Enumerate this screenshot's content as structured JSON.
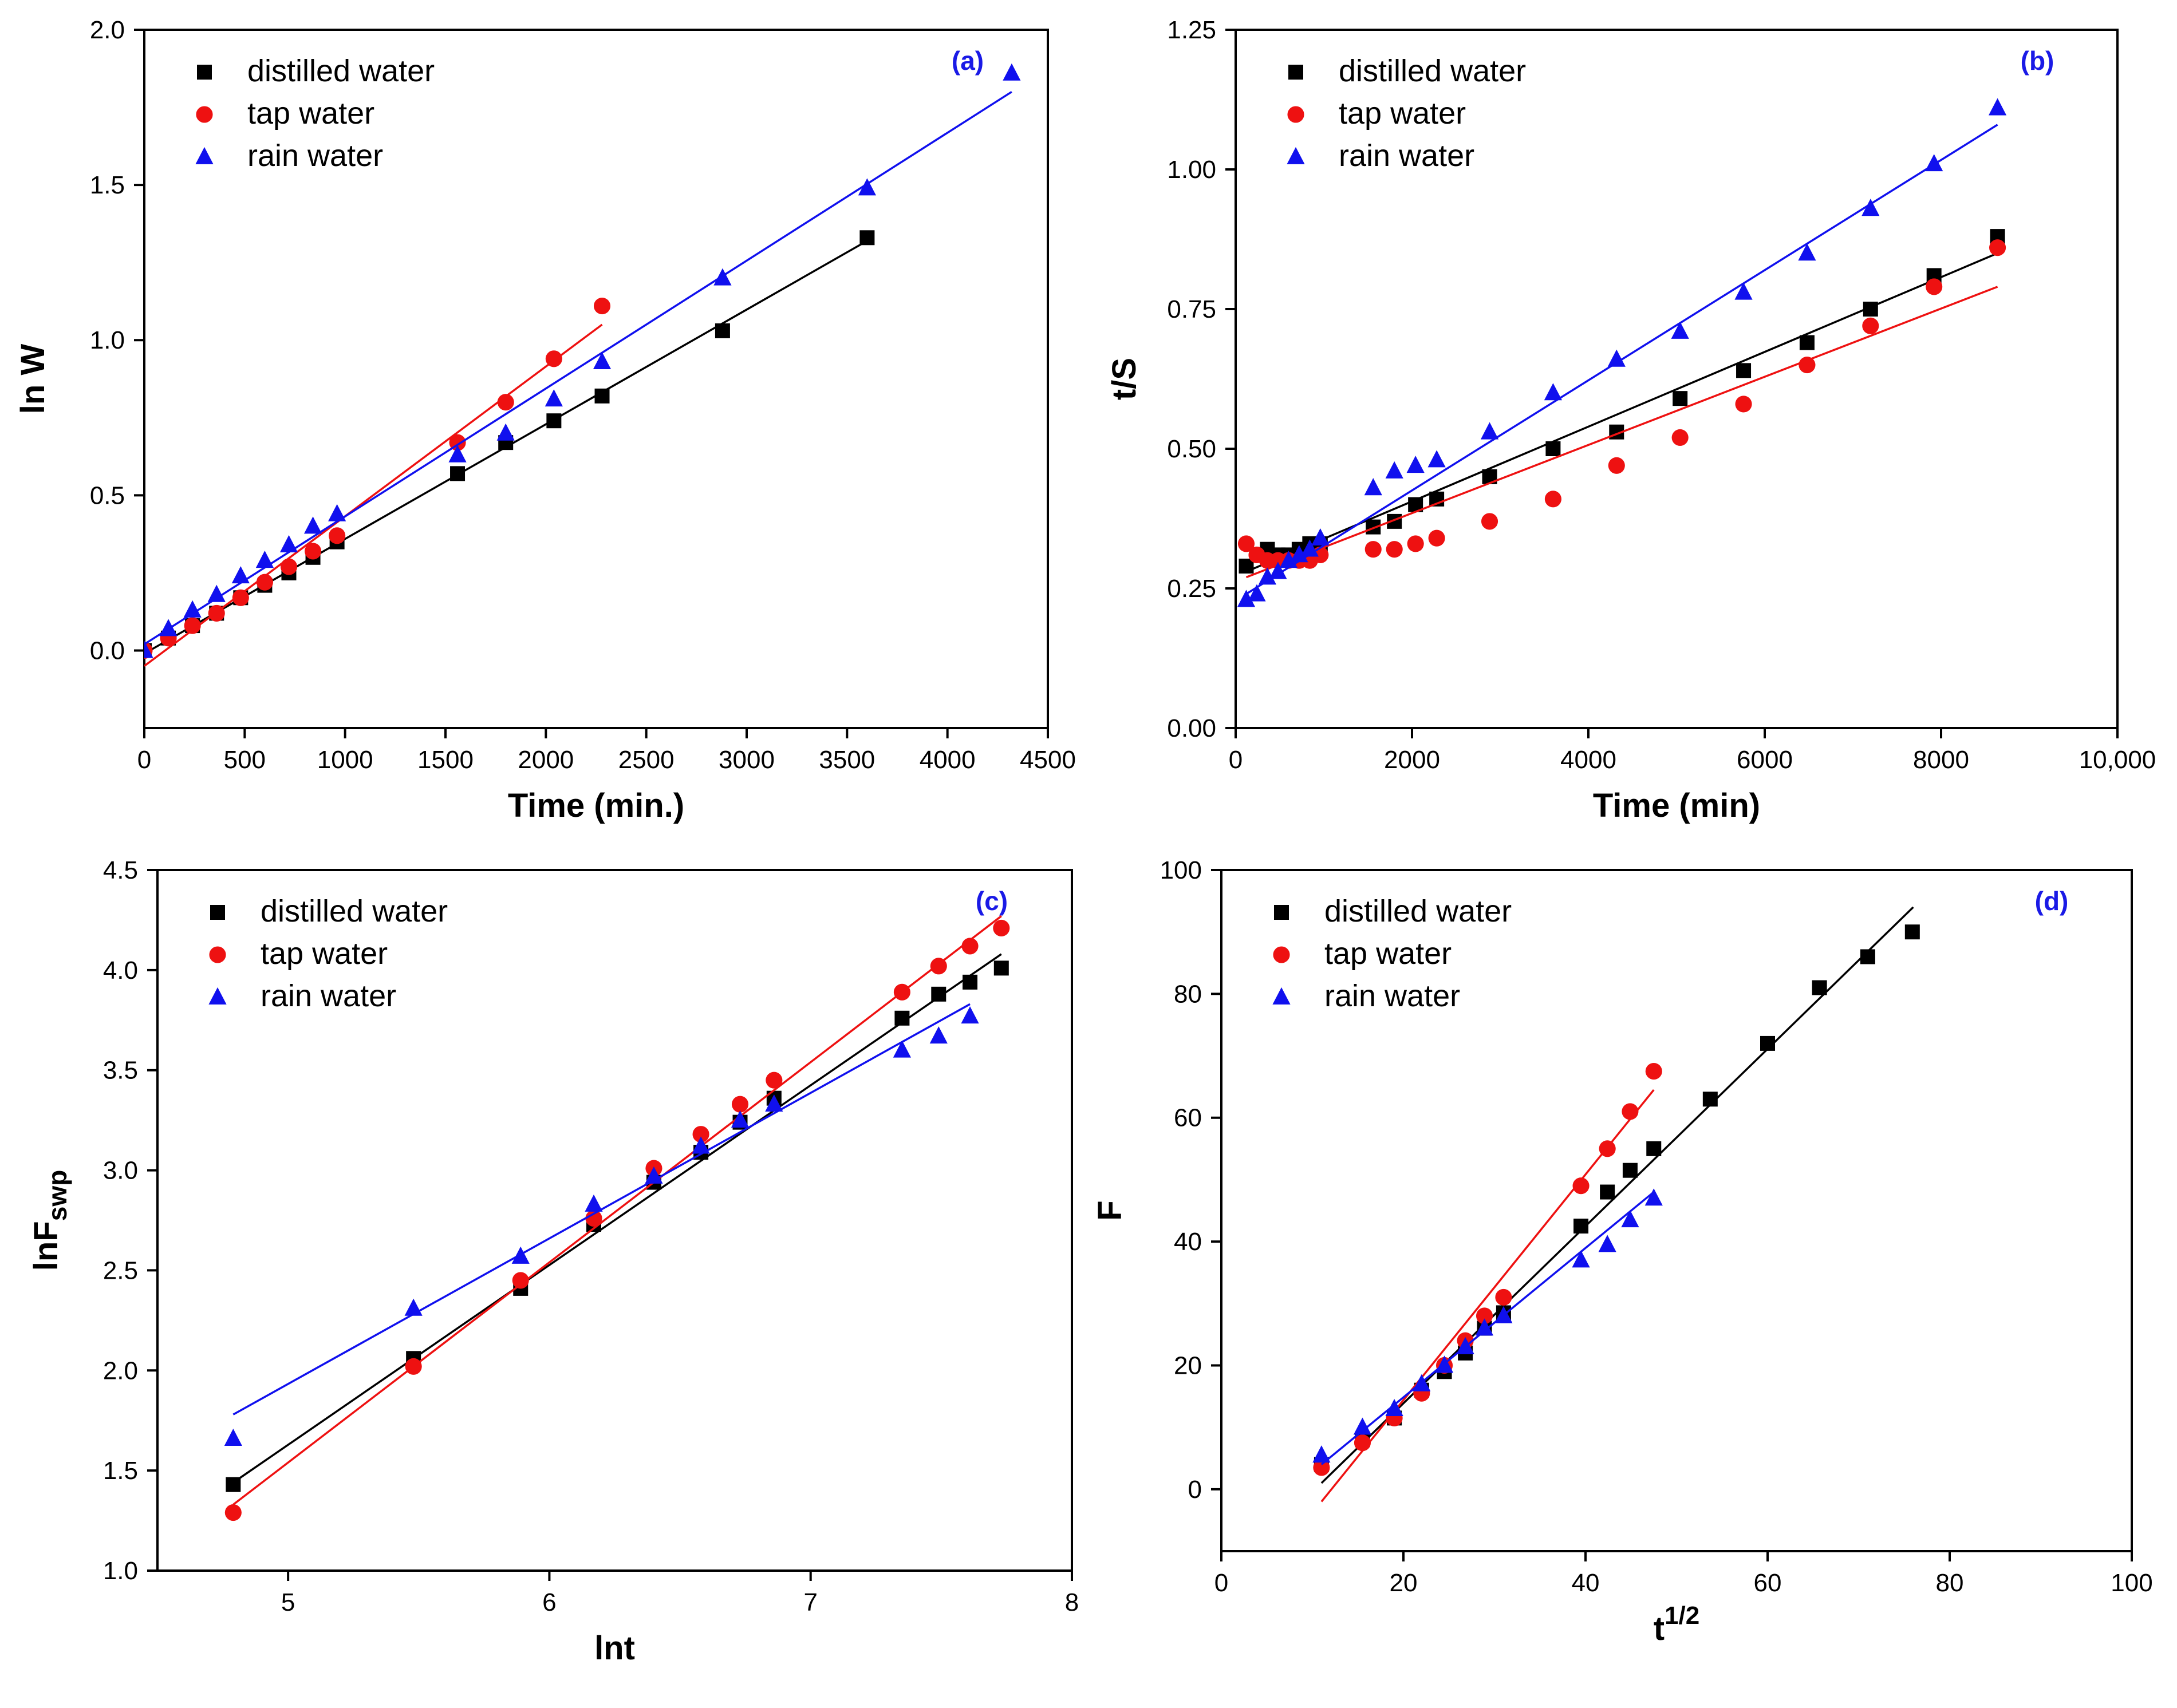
{
  "colors": {
    "distilled": "#000000",
    "tap": "#ee1111",
    "rain": "#1010ee",
    "tag": "#1a1ae6"
  },
  "chart_data": [
    {
      "panel": "(a)",
      "type": "scatter",
      "xlabel": "Time (min.)",
      "ylabel": "ln W",
      "xlim": [
        0,
        4500
      ],
      "ylim": [
        -0.25,
        2.0
      ],
      "xticks": [
        0,
        500,
        1000,
        1500,
        2000,
        2500,
        3000,
        3500,
        4000,
        4500
      ],
      "xtick_labels": [
        "0",
        "500",
        "1000",
        "1500",
        "2000",
        "2500",
        "3000",
        "3500",
        "4000",
        "4500"
      ],
      "yticks": [
        0.0,
        0.5,
        1.0,
        1.5,
        2.0
      ],
      "ytick_labels": [
        "0.0",
        "0.5",
        "1.0",
        "1.5",
        "2.0"
      ],
      "legend_position": "top-left",
      "series": [
        {
          "name": "distilled water",
          "key": "distilled",
          "marker": "square",
          "x": [
            0,
            120,
            240,
            360,
            480,
            600,
            720,
            840,
            960,
            1560,
            1800,
            2040,
            2280,
            2880,
            3600
          ],
          "y": [
            0.0,
            0.04,
            0.08,
            0.12,
            0.17,
            0.21,
            0.25,
            0.3,
            0.35,
            0.57,
            0.67,
            0.74,
            0.82,
            1.03,
            1.33
          ],
          "fit": [
            [
              0,
              -0.01
            ],
            [
              3600,
              1.32
            ]
          ]
        },
        {
          "name": "tap water",
          "key": "tap",
          "marker": "circle",
          "x": [
            0,
            120,
            240,
            360,
            480,
            600,
            720,
            840,
            960,
            1560,
            1800,
            2040,
            2280
          ],
          "y": [
            0.0,
            0.04,
            0.08,
            0.12,
            0.17,
            0.22,
            0.27,
            0.32,
            0.37,
            0.67,
            0.8,
            0.94,
            1.11
          ],
          "fit": [
            [
              0,
              -0.05
            ],
            [
              2280,
              1.05
            ]
          ]
        },
        {
          "name": "rain water",
          "key": "rain",
          "marker": "triangle",
          "x": [
            0,
            120,
            240,
            360,
            480,
            600,
            720,
            840,
            960,
            1560,
            1800,
            2040,
            2280,
            2880,
            3600,
            4320
          ],
          "y": [
            0.0,
            0.07,
            0.13,
            0.18,
            0.24,
            0.29,
            0.34,
            0.4,
            0.44,
            0.63,
            0.7,
            0.81,
            0.93,
            1.2,
            1.49,
            1.86
          ],
          "fit": [
            [
              0,
              0.02
            ],
            [
              4320,
              1.8
            ]
          ]
        }
      ]
    },
    {
      "panel": "(b)",
      "type": "scatter",
      "xlabel": "Time (min)",
      "ylabel": "t/S",
      "xlim": [
        0,
        10000
      ],
      "ylim": [
        0.0,
        1.25
      ],
      "xticks": [
        0,
        2000,
        4000,
        6000,
        8000,
        10000
      ],
      "xtick_labels": [
        "0",
        "2000",
        "4000",
        "6000",
        "8000",
        "10,000"
      ],
      "yticks": [
        0.0,
        0.25,
        0.5,
        0.75,
        1.0,
        1.25
      ],
      "ytick_labels": [
        "0.00",
        "0.25",
        "0.50",
        "0.75",
        "1.00",
        "1.25"
      ],
      "legend_position": "top-left",
      "series": [
        {
          "name": "distilled water",
          "key": "distilled",
          "marker": "square",
          "x": [
            120,
            240,
            360,
            480,
            600,
            720,
            840,
            960,
            1560,
            1800,
            2040,
            2280,
            2880,
            3600,
            4320,
            5040,
            5760,
            6480,
            7200,
            7920,
            8640
          ],
          "y": [
            0.29,
            0.31,
            0.32,
            0.31,
            0.31,
            0.32,
            0.33,
            0.33,
            0.36,
            0.37,
            0.4,
            0.41,
            0.45,
            0.5,
            0.53,
            0.59,
            0.64,
            0.69,
            0.75,
            0.81,
            0.88
          ],
          "fit": [
            [
              120,
              0.28
            ],
            [
              8640,
              0.85
            ]
          ]
        },
        {
          "name": "tap water",
          "key": "tap",
          "marker": "circle",
          "x": [
            120,
            240,
            360,
            480,
            600,
            720,
            840,
            960,
            1560,
            1800,
            2040,
            2280,
            2880,
            3600,
            4320,
            5040,
            5760,
            6480,
            7200,
            7920,
            8640
          ],
          "y": [
            0.33,
            0.31,
            0.3,
            0.3,
            0.3,
            0.3,
            0.3,
            0.31,
            0.32,
            0.32,
            0.33,
            0.34,
            0.37,
            0.41,
            0.47,
            0.52,
            0.58,
            0.65,
            0.72,
            0.79,
            0.86
          ],
          "fit": [
            [
              120,
              0.27
            ],
            [
              8640,
              0.79
            ]
          ]
        },
        {
          "name": "rain water",
          "key": "rain",
          "marker": "triangle",
          "x": [
            120,
            240,
            360,
            480,
            600,
            720,
            840,
            960,
            1560,
            1800,
            2040,
            2280,
            2880,
            3600,
            4320,
            5040,
            5760,
            6480,
            7200,
            7920,
            8640
          ],
          "y": [
            0.23,
            0.24,
            0.27,
            0.28,
            0.3,
            0.31,
            0.32,
            0.34,
            0.43,
            0.46,
            0.47,
            0.48,
            0.53,
            0.6,
            0.66,
            0.71,
            0.78,
            0.85,
            0.93,
            1.01,
            1.11
          ],
          "fit": [
            [
              120,
              0.24
            ],
            [
              8640,
              1.08
            ]
          ]
        }
      ]
    },
    {
      "panel": "(c)",
      "type": "scatter",
      "xlabel": "lnt",
      "ylabel_main": "lnF",
      "ylabel_sub": "swp",
      "xlim": [
        4.5,
        8.0
      ],
      "ylim": [
        1.0,
        4.5
      ],
      "xticks": [
        5,
        6,
        7,
        8
      ],
      "xtick_labels": [
        "5",
        "6",
        "7",
        "8"
      ],
      "yticks": [
        1.0,
        1.5,
        2.0,
        2.5,
        3.0,
        3.5,
        4.0,
        4.5
      ],
      "ytick_labels": [
        "1.0",
        "1.5",
        "2.0",
        "2.5",
        "3.0",
        "3.5",
        "4.0",
        "4.5"
      ],
      "legend_position": "top-left",
      "series": [
        {
          "name": "distilled water",
          "key": "distilled",
          "marker": "square",
          "x": [
            4.79,
            5.48,
            5.89,
            6.17,
            6.4,
            6.58,
            6.73,
            6.86,
            7.35,
            7.49,
            7.61,
            7.73
          ],
          "y": [
            1.43,
            2.06,
            2.41,
            2.73,
            2.94,
            3.09,
            3.24,
            3.36,
            3.76,
            3.88,
            3.94,
            4.01
          ],
          "fit": [
            [
              4.79,
              1.44
            ],
            [
              7.73,
              4.08
            ]
          ]
        },
        {
          "name": "tap water",
          "key": "tap",
          "marker": "circle",
          "x": [
            4.79,
            5.48,
            5.89,
            6.17,
            6.4,
            6.58,
            6.73,
            6.86,
            7.35,
            7.49,
            7.61,
            7.73
          ],
          "y": [
            1.29,
            2.02,
            2.45,
            2.76,
            3.01,
            3.18,
            3.33,
            3.45,
            3.89,
            4.02,
            4.12,
            4.21
          ],
          "fit": [
            [
              4.79,
              1.33
            ],
            [
              7.73,
              4.27
            ]
          ]
        },
        {
          "name": "rain water",
          "key": "rain",
          "marker": "triangle",
          "x": [
            4.79,
            5.48,
            5.89,
            6.17,
            6.4,
            6.58,
            6.73,
            6.86,
            7.35,
            7.49,
            7.61
          ],
          "y": [
            1.66,
            2.31,
            2.57,
            2.83,
            2.97,
            3.12,
            3.25,
            3.33,
            3.6,
            3.67,
            3.77
          ],
          "fit": [
            [
              4.79,
              1.78
            ],
            [
              7.61,
              3.83
            ]
          ]
        }
      ]
    },
    {
      "panel": "(d)",
      "type": "scatter",
      "xlabel_main": "t",
      "xlabel_sup": "1/2",
      "ylabel": "F",
      "xlim": [
        0,
        100
      ],
      "ylim": [
        -10,
        100
      ],
      "xticks": [
        0,
        20,
        40,
        60,
        80,
        100
      ],
      "xtick_labels": [
        "0",
        "20",
        "40",
        "60",
        "80",
        "100"
      ],
      "yticks": [
        0,
        20,
        40,
        60,
        80,
        100
      ],
      "ytick_labels": [
        "0",
        "20",
        "40",
        "60",
        "80",
        "100"
      ],
      "legend_position": "top-left",
      "series": [
        {
          "name": "distilled water",
          "key": "distilled",
          "marker": "square",
          "x": [
            11.0,
            15.5,
            19.0,
            22.0,
            24.5,
            26.8,
            28.9,
            31.0,
            39.5,
            42.4,
            44.9,
            47.5,
            53.7,
            60.0,
            65.7,
            71.0,
            75.9
          ],
          "y": [
            4.0,
            8.0,
            11.5,
            16.0,
            19.0,
            22.0,
            26.0,
            28.5,
            42.5,
            48.0,
            51.5,
            55.0,
            63.0,
            72.0,
            81.0,
            86.0,
            90.0
          ],
          "fit": [
            [
              11.0,
              1.0
            ],
            [
              76.0,
              94.0
            ]
          ]
        },
        {
          "name": "tap water",
          "key": "tap",
          "marker": "circle",
          "x": [
            11.0,
            15.5,
            19.0,
            22.0,
            24.5,
            26.8,
            28.9,
            31.0,
            39.5,
            42.4,
            44.9,
            47.5
          ],
          "y": [
            3.5,
            7.5,
            11.5,
            15.5,
            20.0,
            24.0,
            28.0,
            31.0,
            49.0,
            55.0,
            61.0,
            67.5
          ],
          "fit": [
            [
              11.0,
              -2.0
            ],
            [
              47.5,
              64.5
            ]
          ]
        },
        {
          "name": "rain water",
          "key": "rain",
          "marker": "triangle",
          "x": [
            11.0,
            15.5,
            19.0,
            22.0,
            24.5,
            26.8,
            28.9,
            31.0,
            39.5,
            42.4,
            44.9,
            47.5
          ],
          "y": [
            5.5,
            10.0,
            13.0,
            17.0,
            20.0,
            23.0,
            26.0,
            28.0,
            37.0,
            39.5,
            43.5,
            47.0
          ],
          "fit": [
            [
              11.0,
              4.0
            ],
            [
              47.5,
              48.0
            ]
          ]
        }
      ]
    }
  ]
}
